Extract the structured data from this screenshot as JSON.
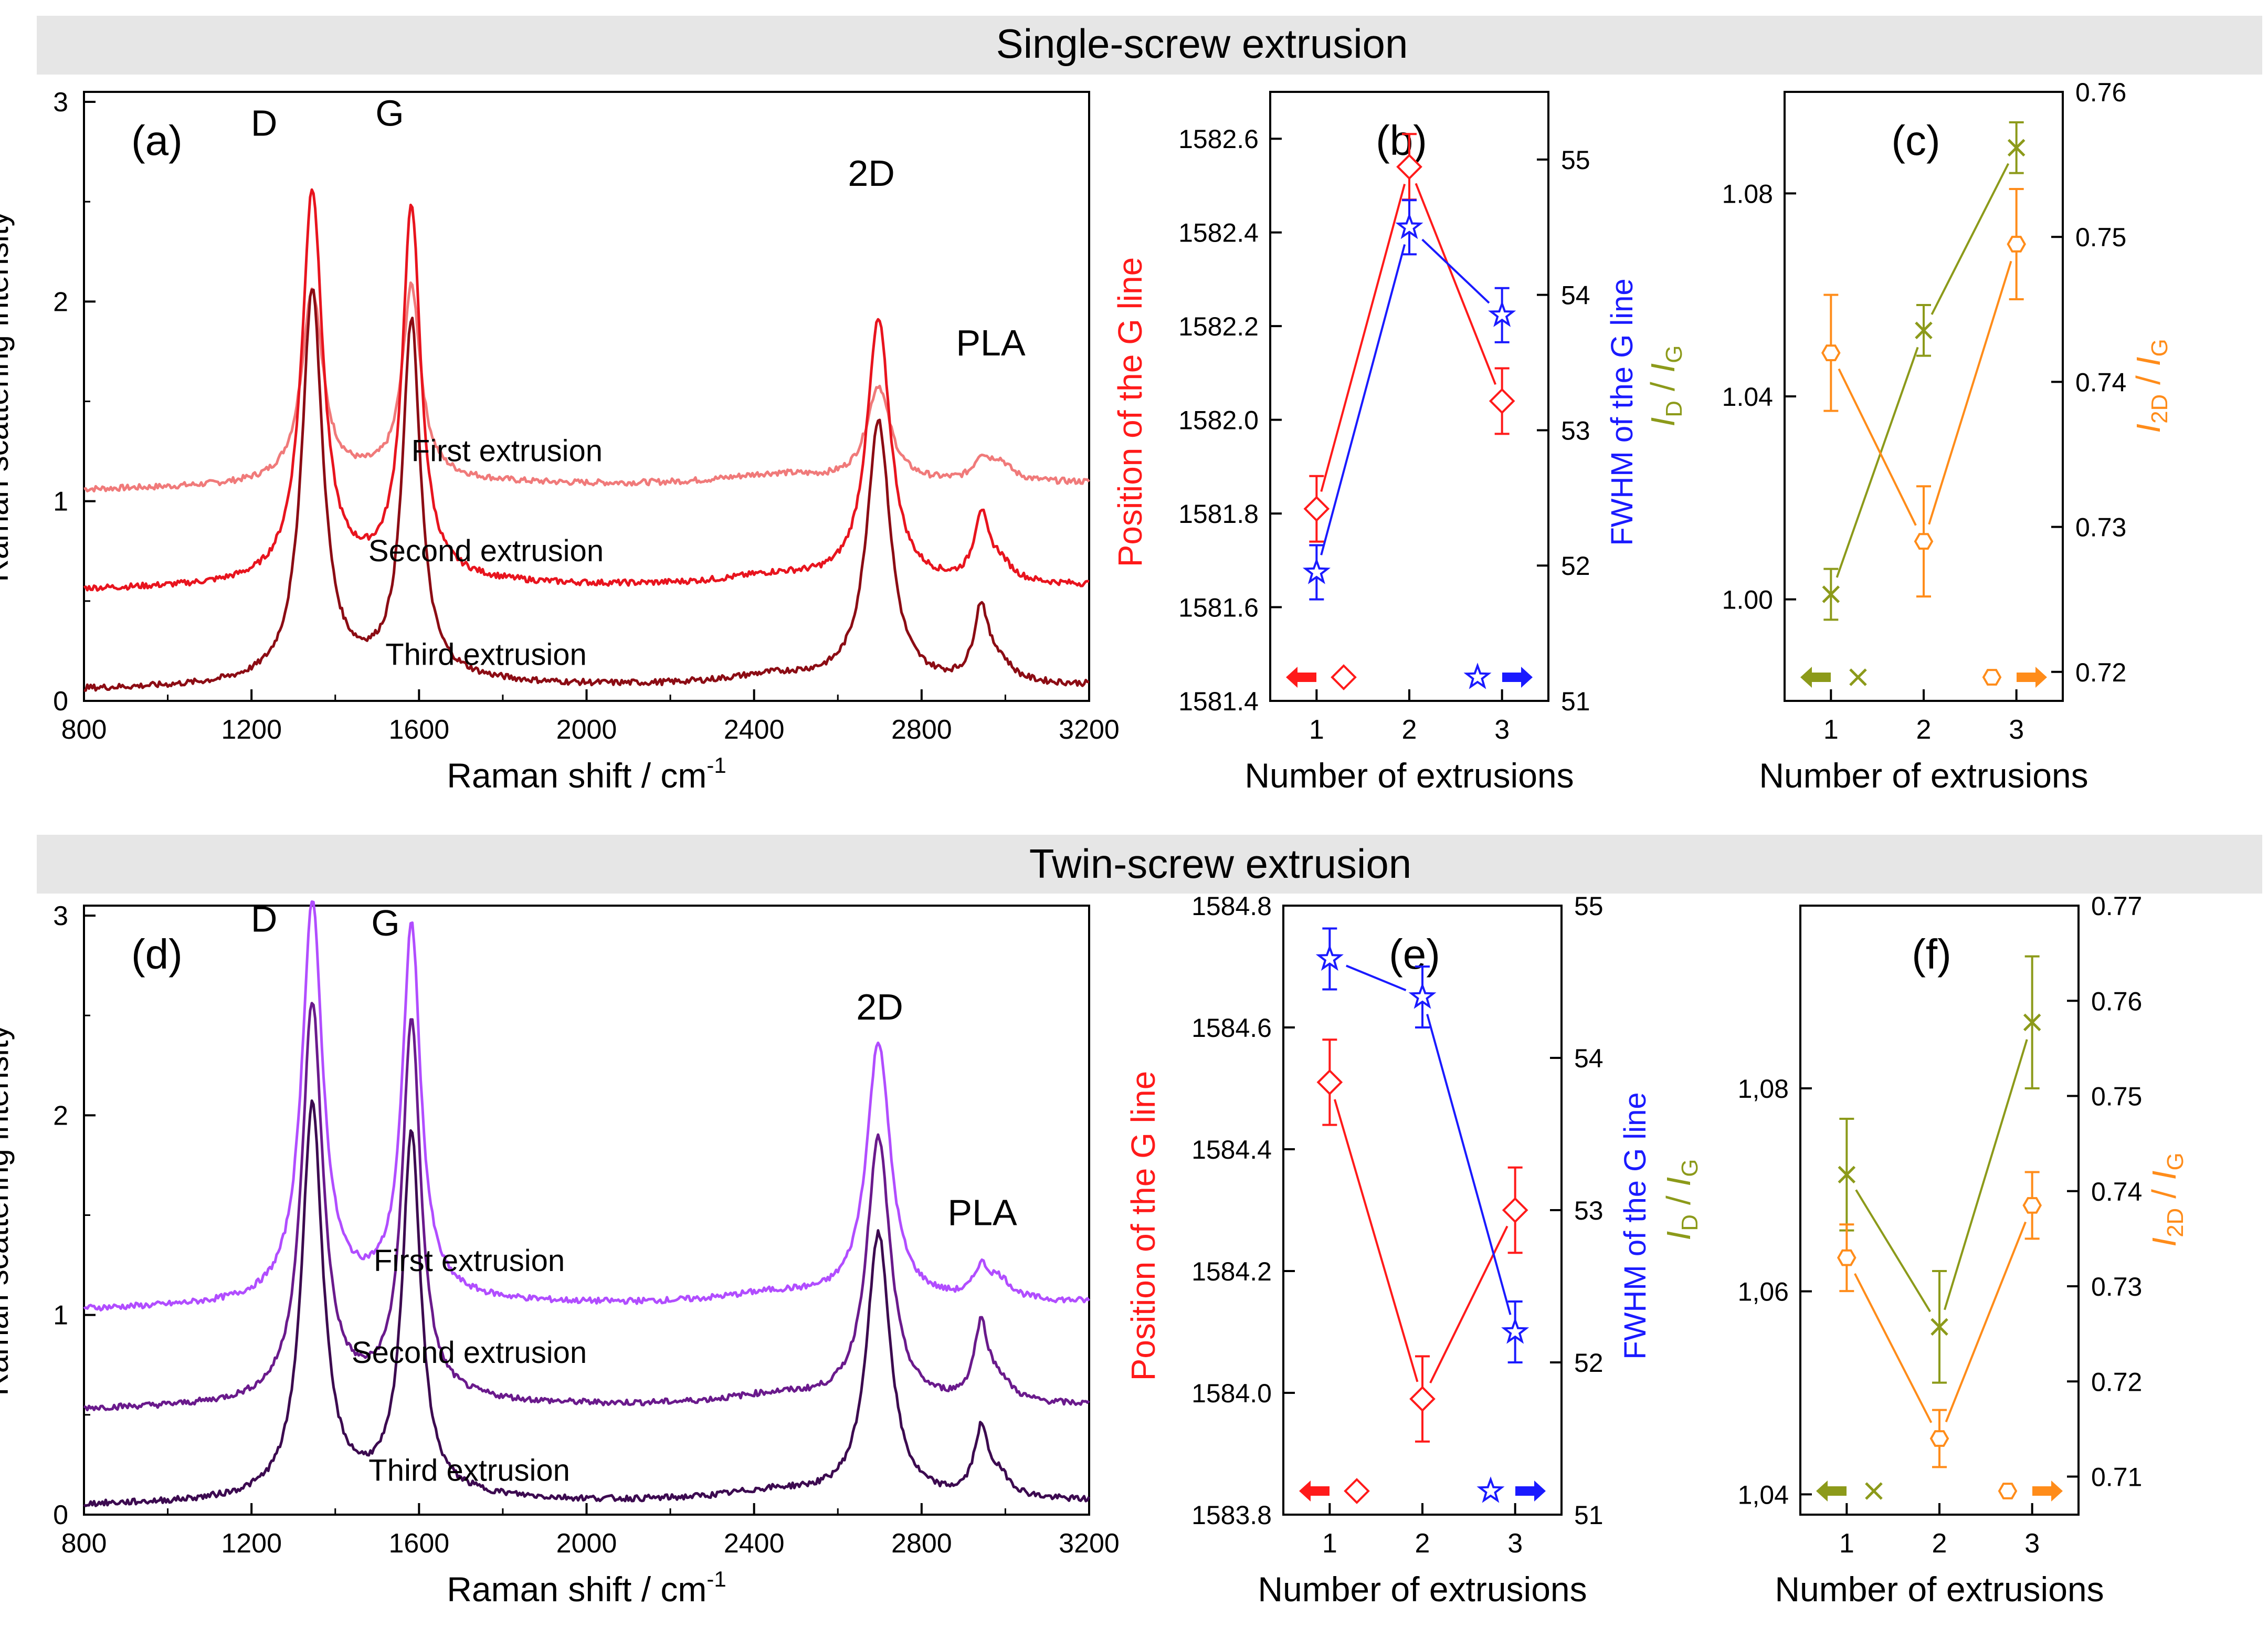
{
  "header_single": "Single-screw extrusion",
  "header_twin": "Twin-screw extrusion",
  "colors": {
    "banner": "#e6e6e6",
    "axis": "#000000",
    "red": "#ff1a1a",
    "blue": "#1a1aff",
    "olive": "#8c9a1a",
    "orange": "#ff8c1a",
    "spec_top_a": "#f07a7a",
    "spec_mid_a": "#e8141e",
    "spec_bot_a": "#8c0c14",
    "spec_top_d": "#b14dff",
    "spec_mid_d": "#6a1a8c",
    "spec_bot_d": "#3c0a50"
  },
  "chart_data": [
    {
      "id": "a",
      "type": "line",
      "panel_label": "(a)",
      "xlabel": "Raman shift / cm",
      "xlabel_sup": "-1",
      "ylabel": "Raman scattering intensity",
      "xlim": [
        800,
        3200
      ],
      "ylim": [
        0,
        3.05
      ],
      "xticks": [
        "800",
        "1200",
        "1600",
        "2000",
        "2400",
        "2800",
        "3200"
      ],
      "yticks": [
        "0",
        "1",
        "2",
        "3"
      ],
      "peak_labels": [
        "D",
        "G",
        "2D",
        "PLA"
      ],
      "series": [
        {
          "name": "First extrusion",
          "offset": 1.05,
          "peaks": [
            0.95,
            0.95,
            0.48,
            0.1
          ],
          "color_key": "spec_top_a"
        },
        {
          "name": "Second extrusion",
          "offset": 0.55,
          "peaks": [
            1.95,
            1.85,
            1.32,
            0.32
          ],
          "color_key": "spec_mid_a"
        },
        {
          "name": "Third extrusion",
          "offset": 0.05,
          "peaks": [
            1.95,
            1.77,
            1.32,
            0.36
          ],
          "color_key": "spec_bot_a"
        }
      ]
    },
    {
      "id": "b",
      "type": "line",
      "panel_label": "(b)",
      "xlabel": "Number of extrusions",
      "ylabel_left": "Position of the G line",
      "ylabel_right": "FWHM of the G line",
      "x": [
        1,
        2,
        3
      ],
      "xticks": [
        "1",
        "2",
        "3"
      ],
      "ylim_left": [
        1581.4,
        1582.7
      ],
      "yticks_left": [
        "1581.4",
        "1581.6",
        "1581.8",
        "1582.0",
        "1582.2",
        "1582.4",
        "1582.6"
      ],
      "ylim_right": [
        51,
        55.5
      ],
      "yticks_right": [
        "51",
        "52",
        "53",
        "54",
        "55"
      ],
      "series": [
        {
          "name": "G line position",
          "axis": "left",
          "marker": "diamond",
          "color_key": "red",
          "values": [
            1581.81,
            1582.54,
            1582.04
          ],
          "errors": [
            0.07,
            0.07,
            0.07
          ]
        },
        {
          "name": "G line FWHM",
          "axis": "right",
          "marker": "star",
          "color_key": "blue",
          "values": [
            51.95,
            54.5,
            53.85
          ],
          "errors": [
            0.2,
            0.2,
            0.2
          ]
        }
      ]
    },
    {
      "id": "c",
      "type": "line",
      "panel_label": "(c)",
      "xlabel": "Number of extrusions",
      "ylabel_left": "I_D / I_G",
      "ylabel_right": "I_2D / I_G",
      "x": [
        1,
        2,
        3
      ],
      "xticks": [
        "1",
        "2",
        "3"
      ],
      "ylim_left": [
        0.98,
        1.1
      ],
      "yticks_left": [
        "1.00",
        "1.04",
        "1.08"
      ],
      "ylim_right": [
        0.718,
        0.76
      ],
      "yticks_right": [
        "0.72",
        "0.73",
        "0.74",
        "0.75",
        "0.76"
      ],
      "series": [
        {
          "name": "ID/IG",
          "axis": "left",
          "marker": "cross",
          "color_key": "olive",
          "values": [
            1.001,
            1.053,
            1.089
          ],
          "errors": [
            0.005,
            0.005,
            0.005
          ]
        },
        {
          "name": "I2D/IG",
          "axis": "right",
          "marker": "hexagon",
          "color_key": "orange",
          "values": [
            0.742,
            0.729,
            0.7495
          ],
          "errors": [
            0.004,
            0.0038,
            0.0038
          ]
        }
      ]
    },
    {
      "id": "d",
      "type": "line",
      "panel_label": "(d)",
      "xlabel": "Raman shift / cm",
      "xlabel_sup": "-1",
      "ylabel": "Raman scattering intensity",
      "xlim": [
        800,
        3200
      ],
      "ylim": [
        0,
        3.05
      ],
      "xticks": [
        "800",
        "1200",
        "1600",
        "2000",
        "2400",
        "2800",
        "3200"
      ],
      "yticks": [
        "0",
        "1",
        "2",
        "3"
      ],
      "peak_labels": [
        "D",
        "G",
        "2D",
        "PLA"
      ],
      "series": [
        {
          "name": "First extrusion",
          "offset": 1.02,
          "peaks": [
            1.98,
            1.85,
            1.3,
            0.14
          ],
          "color_key": "spec_top_d"
        },
        {
          "name": "Second extrusion",
          "offset": 0.52,
          "peaks": [
            1.98,
            1.88,
            1.33,
            0.37
          ],
          "color_key": "spec_mid_d"
        },
        {
          "name": "Third extrusion",
          "offset": 0.04,
          "peaks": [
            1.96,
            1.8,
            1.33,
            0.32
          ],
          "color_key": "spec_bot_d"
        }
      ]
    },
    {
      "id": "e",
      "type": "line",
      "panel_label": "(e)",
      "xlabel": "Number of extrusions",
      "ylabel_left": "Position of the G line",
      "ylabel_right": "FWHM of the G line",
      "x": [
        1,
        2,
        3
      ],
      "xticks": [
        "1",
        "2",
        "3"
      ],
      "ylim_left": [
        1583.8,
        1584.8
      ],
      "yticks_left": [
        "1583.8",
        "1584.0",
        "1584.2",
        "1584.4",
        "1584.6",
        "1584.8"
      ],
      "ylim_right": [
        51,
        55
      ],
      "yticks_right": [
        "51",
        "52",
        "53",
        "54",
        "55"
      ],
      "series": [
        {
          "name": "G line position",
          "axis": "left",
          "marker": "diamond",
          "color_key": "red",
          "values": [
            1584.51,
            1583.99,
            1584.3
          ],
          "errors": [
            0.07,
            0.07,
            0.07
          ]
        },
        {
          "name": "G line FWHM",
          "axis": "right",
          "marker": "star",
          "color_key": "blue",
          "values": [
            54.65,
            54.4,
            52.2
          ],
          "errors": [
            0.2,
            0.2,
            0.2
          ]
        }
      ]
    },
    {
      "id": "f",
      "type": "line",
      "panel_label": "(f)",
      "xlabel": "Number of extrusions",
      "ylabel_left": "I_D / I_G",
      "ylabel_right": "I_2D / I_G",
      "x": [
        1,
        2,
        3
      ],
      "xticks": [
        "1",
        "2",
        "3"
      ],
      "ylim_left": [
        1.038,
        1.098
      ],
      "yticks_left": [
        "1,04",
        "1,06",
        "1,08"
      ],
      "ylim_right": [
        0.706,
        0.77
      ],
      "yticks_right": [
        "0.71",
        "0.72",
        "0.73",
        "0.74",
        "0.75",
        "0.76",
        "0.77"
      ],
      "series": [
        {
          "name": "ID/IG",
          "axis": "left",
          "marker": "cross",
          "color_key": "olive",
          "values": [
            1.0715,
            1.0565,
            1.0865
          ],
          "errors": [
            0.0055,
            0.0055,
            0.0065
          ]
        },
        {
          "name": "I2D/IG",
          "axis": "right",
          "marker": "hexagon",
          "color_key": "orange",
          "values": [
            0.733,
            0.714,
            0.7385
          ],
          "errors": [
            0.0035,
            0.003,
            0.0035
          ]
        }
      ]
    }
  ]
}
